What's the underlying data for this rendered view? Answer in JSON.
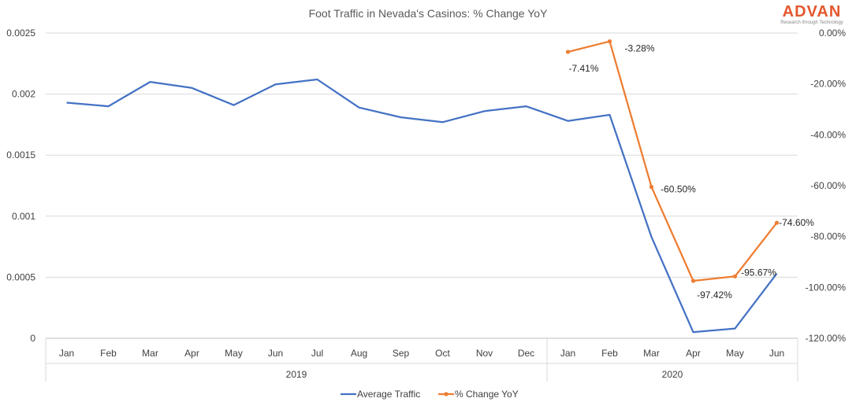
{
  "chart_data": {
    "type": "line",
    "title": "Foot Traffic in Nevada's Casinos: % Change YoY",
    "categories": [
      "Jan",
      "Feb",
      "Mar",
      "Apr",
      "May",
      "Jun",
      "Jul",
      "Aug",
      "Sep",
      "Oct",
      "Nov",
      "Dec",
      "Jan",
      "Feb",
      "Mar",
      "Apr",
      "May",
      "Jun"
    ],
    "year_groups": [
      {
        "label": "2019",
        "count": 12
      },
      {
        "label": "2020",
        "count": 6
      }
    ],
    "y_left": {
      "ylim": [
        0,
        0.0025
      ],
      "ticks": [
        0,
        0.0005,
        0.001,
        0.0015,
        0.002,
        0.0025
      ],
      "tick_labels": [
        "0",
        "0.0005",
        "0.001",
        "0.0015",
        "0.002",
        "0.0025"
      ]
    },
    "y_right": {
      "ylim": [
        -1.2,
        0
      ],
      "ticks": [
        0,
        -0.2,
        -0.4,
        -0.6,
        -0.8,
        -1.0,
        -1.2
      ],
      "tick_labels": [
        "0.00%",
        "-20.00%",
        "-40.00%",
        "-60.00%",
        "-80.00%",
        "-100.00%",
        "-120.00%"
      ]
    },
    "grid": true,
    "legend_position": "bottom",
    "series": [
      {
        "name": "Average Traffic",
        "axis": "left",
        "color": "#4472c4",
        "values": [
          0.00193,
          0.0019,
          0.0021,
          0.00205,
          0.00191,
          0.00208,
          0.00212,
          0.00189,
          0.00181,
          0.00177,
          0.00186,
          0.0019,
          0.00178,
          0.00183,
          0.00083,
          5e-05,
          8e-05,
          0.00053
        ]
      },
      {
        "name": "% Change YoY",
        "axis": "right",
        "color": "#ed7d31",
        "values": [
          null,
          null,
          null,
          null,
          null,
          null,
          null,
          null,
          null,
          null,
          null,
          null,
          -0.0741,
          -0.0328,
          -0.605,
          -0.9742,
          -0.9567,
          -0.746
        ],
        "data_labels": [
          null,
          null,
          null,
          null,
          null,
          null,
          null,
          null,
          null,
          null,
          null,
          null,
          "-7.41%",
          "-3.28%",
          "-60.50%",
          "-97.42%",
          "-95.67%",
          "-74.60%"
        ]
      }
    ]
  },
  "brand": {
    "name": "ADVAN",
    "tagline": "Research through Technology",
    "color": "#e4572e"
  }
}
